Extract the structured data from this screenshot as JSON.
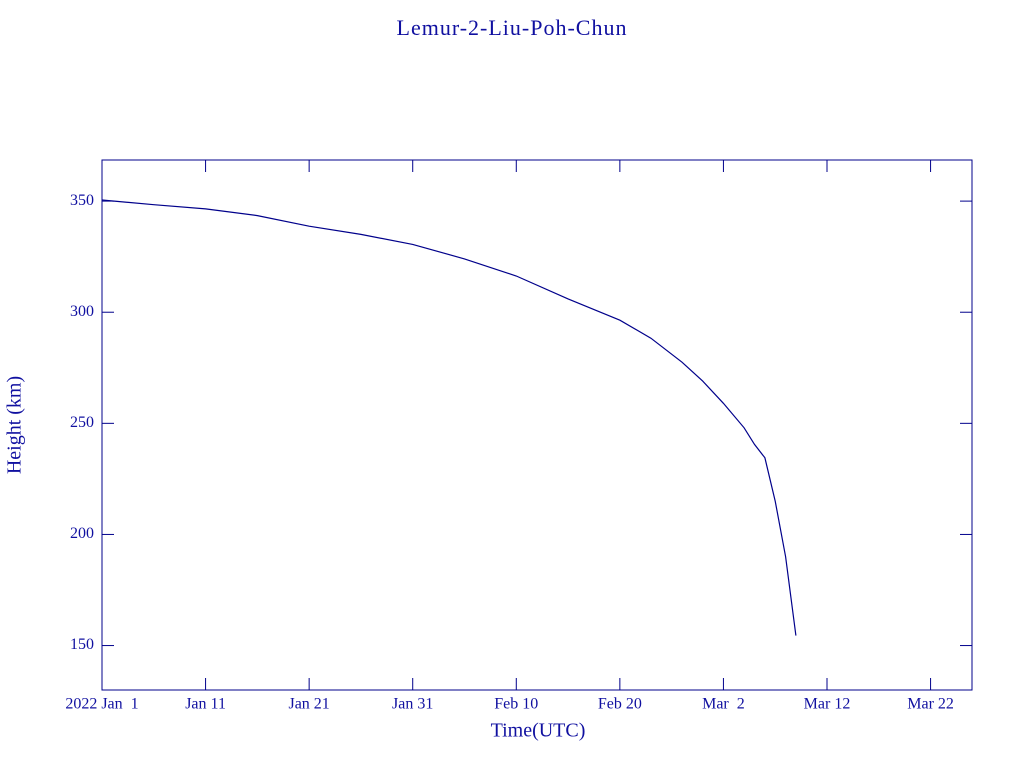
{
  "chart_data": {
    "type": "line",
    "title": "Lemur-2-Liu-Poh-Chun",
    "x_label": "Time(UTC)",
    "y_label": "Height (km)",
    "color": "#00008b",
    "x": [
      "2022-01-01",
      "2022-01-06",
      "2022-01-11",
      "2022-01-16",
      "2022-01-21",
      "2022-01-26",
      "2022-01-31",
      "2022-02-05",
      "2022-02-10",
      "2022-02-15",
      "2022-02-20",
      "2022-02-23",
      "2022-02-26",
      "2022-02-28",
      "2022-03-02",
      "2022-03-04",
      "2022-03-05",
      "2022-03-06",
      "2022-03-07",
      "2022-03-08",
      "2022-03-09"
    ],
    "values": [
      350.5,
      348.4,
      346.5,
      343.5,
      338.7,
      335,
      330.5,
      324,
      316.3,
      306,
      296.4,
      288.3,
      277.5,
      269,
      259,
      248,
      240.5,
      234.5,
      215,
      190,
      154.5
    ],
    "xlim": [
      "2022-01-01",
      "2022-03-26"
    ],
    "xticks": [
      {
        "value": "2022-01-01",
        "label": "2022 Jan  1"
      },
      {
        "value": "2022-01-11",
        "label": "Jan 11"
      },
      {
        "value": "2022-01-21",
        "label": "Jan 21"
      },
      {
        "value": "2022-01-31",
        "label": "Jan 31"
      },
      {
        "value": "2022-02-10",
        "label": "Feb 10"
      },
      {
        "value": "2022-02-20",
        "label": "Feb 20"
      },
      {
        "value": "2022-03-02",
        "label": "Mar  2"
      },
      {
        "value": "2022-03-12",
        "label": "Mar 12"
      },
      {
        "value": "2022-03-22",
        "label": "Mar 22"
      }
    ],
    "ylim": [
      130,
      368.5
    ],
    "yticks": [
      150,
      200,
      250,
      300,
      350
    ]
  }
}
